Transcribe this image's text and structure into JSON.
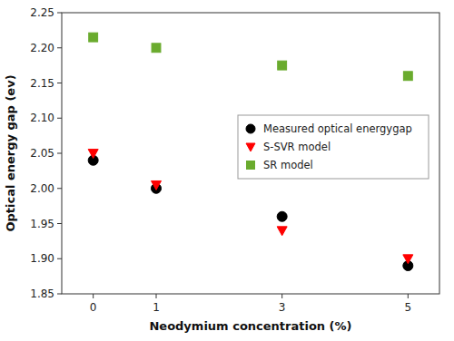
{
  "chart_data": {
    "type": "scatter",
    "x_label": "Neodymium concentration (%)",
    "y_label": "Optical energy gap (ev)",
    "x": [
      0,
      1,
      3,
      5
    ],
    "series": [
      {
        "name": "Measured optical energygap",
        "color": "#000000",
        "marker": "circle",
        "values": [
          2.04,
          2.0,
          1.96,
          1.89
        ]
      },
      {
        "name": "S-SVR model",
        "color": "#ff0000",
        "marker": "triangle-down",
        "values": [
          2.05,
          2.005,
          1.94,
          1.9
        ]
      },
      {
        "name": "SR model",
        "color": "#6aab2e",
        "marker": "square",
        "values": [
          2.215,
          2.2,
          2.175,
          2.16
        ]
      }
    ],
    "xlim": [
      -0.5,
      5.5
    ],
    "xticks": [
      0,
      1,
      3,
      5
    ],
    "ylim": [
      1.85,
      2.25
    ],
    "yticks": [
      1.85,
      {
        "value": 1.9,
        "label": "1.90"
      },
      1.95,
      {
        "value": 2.0,
        "label": "2.00"
      },
      2.05,
      {
        "value": 2.1,
        "label": "2.10"
      },
      2.15,
      {
        "value": 2.2,
        "label": "2.20"
      },
      2.25
    ],
    "grid": false,
    "legend": "center right"
  }
}
